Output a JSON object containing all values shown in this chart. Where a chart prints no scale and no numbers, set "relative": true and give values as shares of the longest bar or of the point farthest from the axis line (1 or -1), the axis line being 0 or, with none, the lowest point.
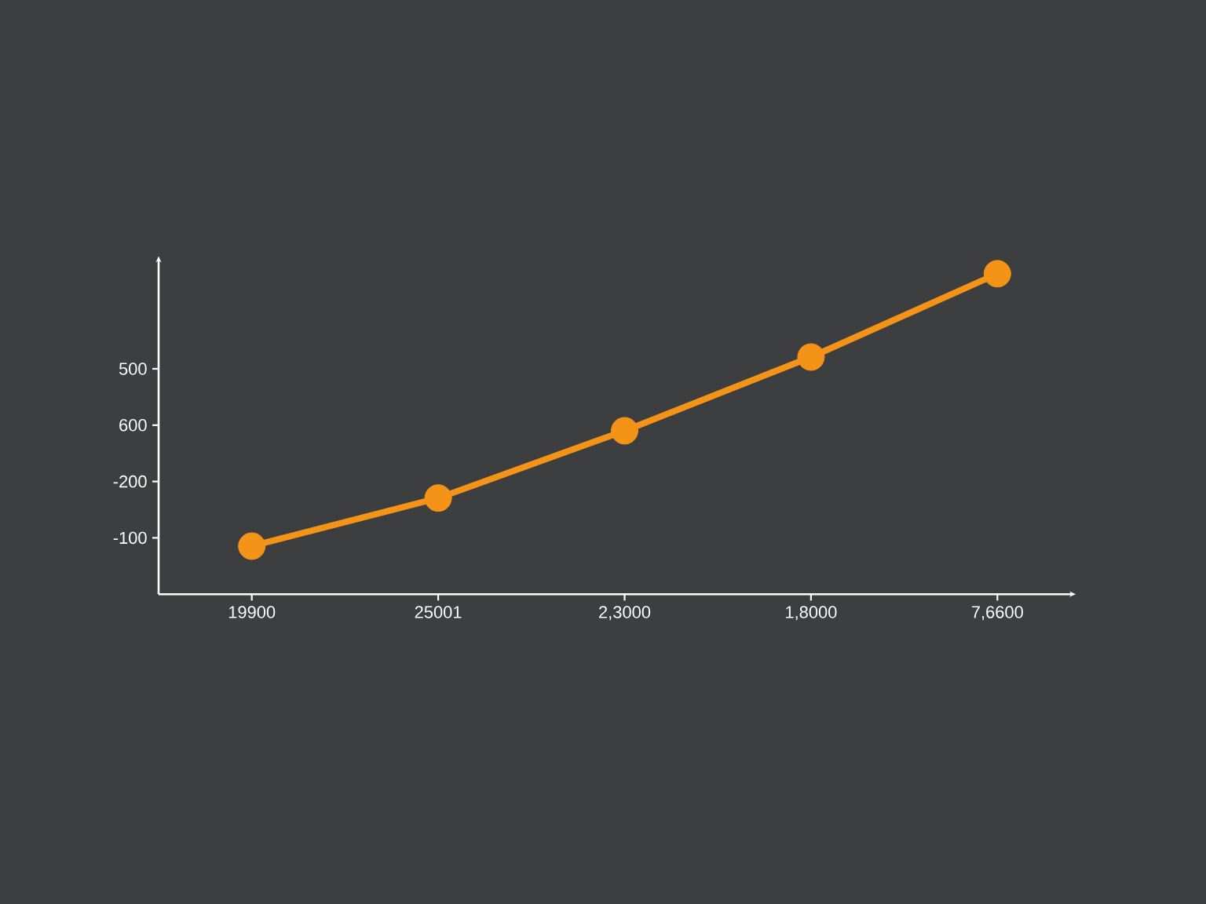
{
  "chart_data": {
    "type": "line",
    "relative": true,
    "categories": [
      "19900",
      "25001",
      "2,3000",
      "1,8000",
      "7,6600"
    ],
    "values": [
      0.15,
      0.3,
      0.51,
      0.74,
      1
    ],
    "color": "#f39317",
    "annotations": [
      "500",
      "600",
      "-200",
      "-100"
    ],
    "marker": "circle",
    "line_style": "solid"
  }
}
